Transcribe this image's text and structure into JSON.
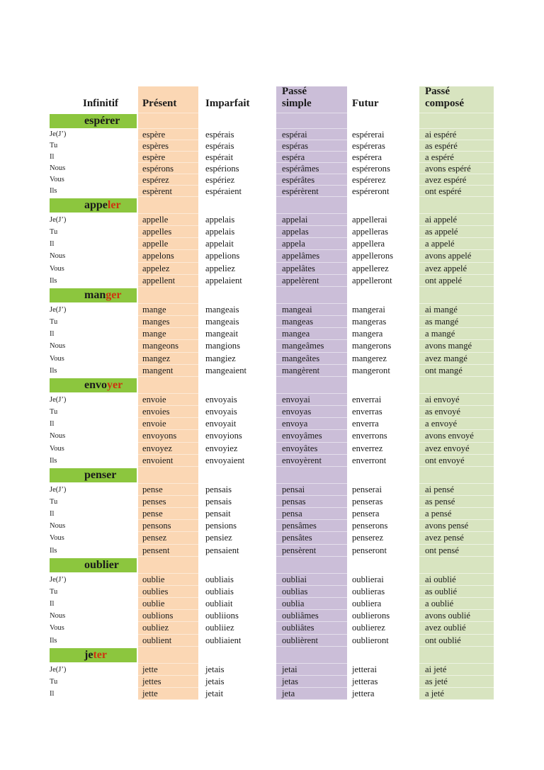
{
  "page": {
    "type": "french-conjugation-table-page"
  },
  "header": {
    "columns": [
      "Infinitif",
      "Présent",
      "Imparfait",
      "Passé simple",
      "Futur",
      "Passé composé"
    ]
  },
  "pronouns": [
    "Je(J’)",
    "Tu",
    "Il",
    "Nous",
    "Vous",
    "Ils"
  ],
  "colors": {
    "verb_bar_green": "#8cc63e",
    "present_band": "#fbd7b4",
    "passe_simple_band": "#cbbed8",
    "passe_compose_band": "#d8e4c0",
    "suffix_red": "#cd3410",
    "text": "#1a1a1a"
  },
  "verbs": [
    {
      "stem": "espérer",
      "suffix": "",
      "present": [
        "espère",
        "espères",
        "espère",
        "espérons",
        "espérez",
        "espèrent"
      ],
      "imparfait": [
        "espérais",
        "espérais",
        "espérait",
        "espérions",
        "espériez",
        "espéraient"
      ],
      "passe_simple": [
        "espérai",
        "espéras",
        "espéra",
        "espérâmes",
        "espérâtes",
        "espérèrent"
      ],
      "futur": [
        "espérerai",
        "espéreras",
        "espérera",
        "espérerons",
        "espérerez",
        "espéreront"
      ],
      "passe_compose": [
        "ai espéré",
        "as espéré",
        "a espéré",
        "avons espéré",
        "avez espéré",
        "ont espéré"
      ]
    },
    {
      "stem": "appe",
      "suffix": "ler",
      "present": [
        "appelle",
        "appelles",
        "appelle",
        "appelons",
        "appelez",
        "appellent"
      ],
      "imparfait": [
        "appelais",
        "appelais",
        "appelait",
        "appelions",
        "appeliez",
        "appelaient"
      ],
      "passe_simple": [
        "appelai",
        "appelas",
        "appela",
        "appelâmes",
        "appelâtes",
        "appelèrent"
      ],
      "futur": [
        "appellerai",
        "appelleras",
        "appellera",
        "appellerons",
        "appellerez",
        "appelleront"
      ],
      "passe_compose": [
        "ai appelé",
        "as appelé",
        "a appelé",
        "avons appelé",
        "avez appelé",
        "ont appelé"
      ]
    },
    {
      "stem": "man",
      "suffix": "ger",
      "present": [
        "mange",
        "manges",
        "mange",
        "mangeons",
        "mangez",
        "mangent"
      ],
      "imparfait": [
        "mangeais",
        "mangeais",
        "mangeait",
        "mangions",
        "mangiez",
        "mangeaient"
      ],
      "passe_simple": [
        "mangeai",
        "mangeas",
        "mangea",
        "mangeâmes",
        "mangeâtes",
        "mangèrent"
      ],
      "futur": [
        "mangerai",
        "mangeras",
        "mangera",
        "mangerons",
        "mangerez",
        "mangeront"
      ],
      "passe_compose": [
        "ai mangé",
        "as mangé",
        "a mangé",
        "avons mangé",
        "avez mangé",
        "ont mangé"
      ]
    },
    {
      "stem": "envo",
      "suffix": "yer",
      "present": [
        "envoie",
        "envoies",
        "envoie",
        "envoyons",
        "envoyez",
        "envoient"
      ],
      "imparfait": [
        "envoyais",
        "envoyais",
        "envoyait",
        "envoyions",
        "envoyiez",
        "envoyaient"
      ],
      "passe_simple": [
        "envoyai",
        "envoyas",
        "envoya",
        "envoyâmes",
        "envoyâtes",
        "envoyèrent"
      ],
      "futur": [
        "enverrai",
        "enverras",
        "enverra",
        "enverrons",
        "enverrez",
        "enverront"
      ],
      "passe_compose": [
        "ai envoyé",
        "as envoyé",
        "a envoyé",
        "avons envoyé",
        "avez envoyé",
        "ont envoyé"
      ]
    },
    {
      "stem": "penser",
      "suffix": "",
      "present": [
        "pense",
        "penses",
        "pense",
        "pensons",
        "pensez",
        "pensent"
      ],
      "imparfait": [
        "pensais",
        "pensais",
        "pensait",
        "pensions",
        "pensiez",
        "pensaient"
      ],
      "passe_simple": [
        "pensai",
        "pensas",
        "pensa",
        "pensâmes",
        "pensâtes",
        "pensèrent"
      ],
      "futur": [
        "penserai",
        "penseras",
        "pensera",
        "penserons",
        "penserez",
        "penseront"
      ],
      "passe_compose": [
        "ai pensé",
        "as pensé",
        "a pensé",
        "avons pensé",
        "avez pensé",
        "ont pensé"
      ]
    },
    {
      "stem": "oublier",
      "suffix": "",
      "present": [
        "oublie",
        "oublies",
        "oublie",
        "oublions",
        "oubliez",
        "oublient"
      ],
      "imparfait": [
        "oubliais",
        "oubliais",
        "oubliait",
        "oubliions",
        "oubliiez",
        "oubliaient"
      ],
      "passe_simple": [
        "oubliai",
        "oublias",
        "oublia",
        "oubliâmes",
        "oubliâtes",
        "oublièrent"
      ],
      "futur": [
        "oublierai",
        "oublieras",
        "oubliera",
        "oublierons",
        "oublierez",
        "oublieront"
      ],
      "passe_compose": [
        "ai oublié",
        "as oublié",
        "a oublié",
        "avons oublié",
        "avez oublié",
        "ont oublié"
      ]
    },
    {
      "stem": "je",
      "suffix": "ter",
      "present": [
        "jette",
        "jettes",
        "jette"
      ],
      "imparfait": [
        "jetais",
        "jetais",
        "jetait"
      ],
      "passe_simple": [
        "jetai",
        "jetas",
        "jeta"
      ],
      "futur": [
        "jetterai",
        "jetteras",
        "jettera"
      ],
      "passe_compose": [
        "ai jeté",
        "as jeté",
        "a jeté"
      ]
    }
  ]
}
